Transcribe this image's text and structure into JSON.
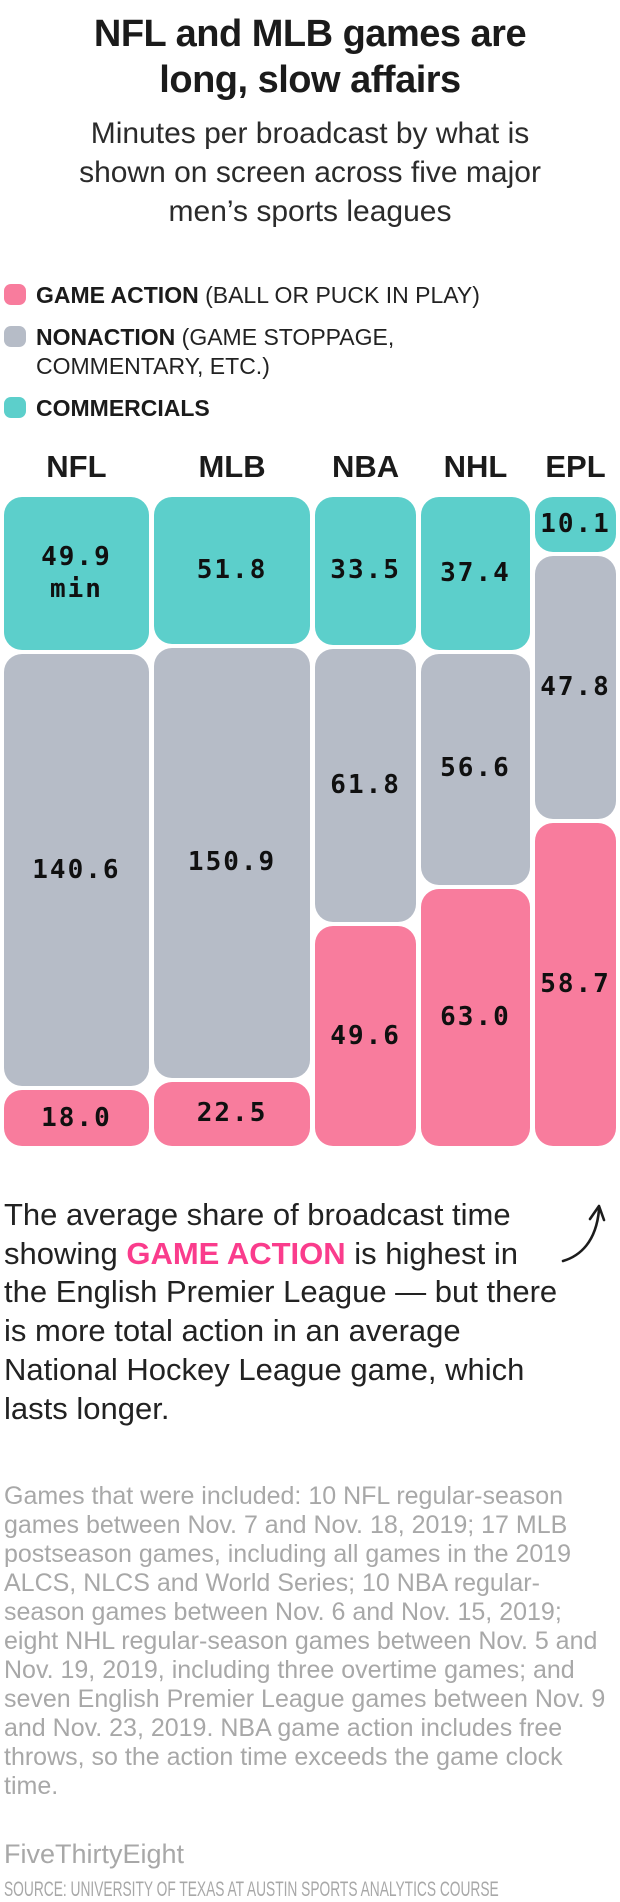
{
  "header": {
    "title": "NFL and MLB games are long, slow affairs",
    "subtitle": "Minutes per broadcast by what is shown on screen across five major men’s sports leagues"
  },
  "legend": [
    {
      "key": "game_action",
      "label": "GAME ACTION",
      "detail": " (BALL OR PUCK IN PLAY)",
      "detail2": ""
    },
    {
      "key": "nonaction",
      "label": "NONACTION",
      "detail": " (GAME STOPPAGE,",
      "detail2": "COMMENTARY, ETC.)"
    },
    {
      "key": "commercials",
      "label": "COMMERCIALS",
      "detail": "",
      "detail2": ""
    }
  ],
  "colors": {
    "game_action": "#F87C9D",
    "nonaction": "#B6BCC7",
    "commercials": "#5CCFCB",
    "highlight_text": "#FA3C8C",
    "arrow": "#1c1c1c"
  },
  "chart_data": {
    "type": "marimekko-stacked-column",
    "unit": "minutes per broadcast",
    "note": "column width proportional to total broadcast minutes; segment height proportional to share of broadcast",
    "categories_top_to_bottom": [
      "COMMERCIALS",
      "NONACTION",
      "GAME ACTION"
    ],
    "columns": [
      {
        "league": "NFL",
        "total": 208.5,
        "segments": [
          {
            "category": "commercials",
            "value": 49.9,
            "label": "49.9",
            "unit": "min"
          },
          {
            "category": "nonaction",
            "value": 140.6,
            "label": "140.6",
            "unit": ""
          },
          {
            "category": "game_action",
            "value": 18.0,
            "label": "18.0",
            "unit": ""
          }
        ]
      },
      {
        "league": "MLB",
        "total": 225.2,
        "segments": [
          {
            "category": "commercials",
            "value": 51.8,
            "label": "51.8",
            "unit": ""
          },
          {
            "category": "nonaction",
            "value": 150.9,
            "label": "150.9",
            "unit": ""
          },
          {
            "category": "game_action",
            "value": 22.5,
            "label": "22.5",
            "unit": ""
          }
        ]
      },
      {
        "league": "NBA",
        "total": 144.9,
        "segments": [
          {
            "category": "commercials",
            "value": 33.5,
            "label": "33.5",
            "unit": ""
          },
          {
            "category": "nonaction",
            "value": 61.8,
            "label": "61.8",
            "unit": ""
          },
          {
            "category": "game_action",
            "value": 49.6,
            "label": "49.6",
            "unit": ""
          }
        ]
      },
      {
        "league": "NHL",
        "total": 157.0,
        "segments": [
          {
            "category": "commercials",
            "value": 37.4,
            "label": "37.4",
            "unit": ""
          },
          {
            "category": "nonaction",
            "value": 56.6,
            "label": "56.6",
            "unit": ""
          },
          {
            "category": "game_action",
            "value": 63.0,
            "label": "63.0",
            "unit": ""
          }
        ]
      },
      {
        "league": "EPL",
        "total": 116.6,
        "segments": [
          {
            "category": "commercials",
            "value": 10.1,
            "label": "10.1",
            "unit": ""
          },
          {
            "category": "nonaction",
            "value": 47.8,
            "label": "47.8",
            "unit": ""
          },
          {
            "category": "game_action",
            "value": 58.7,
            "label": "58.7",
            "unit": ""
          }
        ]
      }
    ]
  },
  "annotation": {
    "pre": "The average share of broadcast time showing ",
    "highlight": "GAME ACTION",
    "post": " is highest in the English Premier League — but there is more total action in an average National Hockey League game, which lasts longer."
  },
  "footnote": "Games that were included: 10 NFL regular-season games between Nov. 7 and Nov. 18, 2019; 17 MLB postseason games, including all games in the 2019 ALCS, NLCS and World Series; 10 NBA regular-season games between Nov. 6 and Nov. 15, 2019; eight NHL regular-season games between Nov. 5 and Nov. 19, 2019, including three overtime games; and seven English Premier League games between Nov. 9 and Nov. 23, 2019. NBA game action includes free throws, so the action time exceeds the game clock time.",
  "footer": {
    "credit": "FiveThirtyEight",
    "source": "SOURCE: UNIVERSITY OF TEXAS AT AUSTIN SPORTS ANALYTICS COURSE"
  }
}
